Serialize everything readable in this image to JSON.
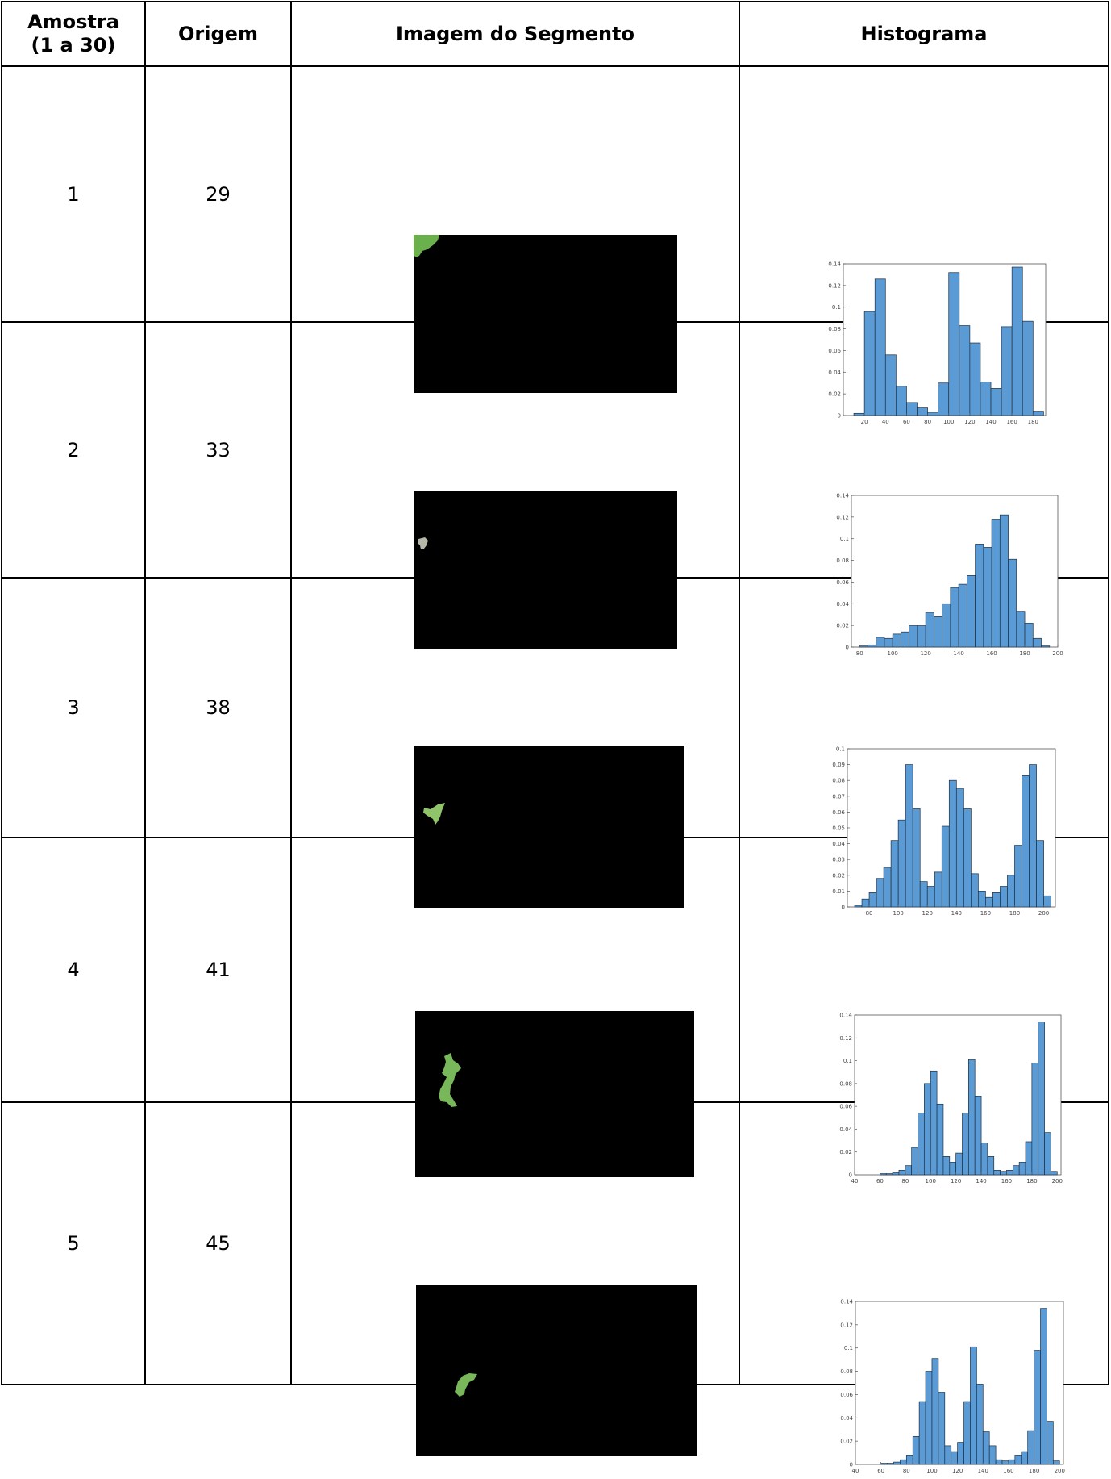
{
  "headers": [
    "Amostra\n(1 a 30)",
    "Origem",
    "Imagem do Segmento",
    "Histograma"
  ],
  "rows": [
    {
      "amostra": "1",
      "origem": "29",
      "chart_data": {
        "type": "bar",
        "x": [
          10,
          20,
          30,
          40,
          50,
          60,
          70,
          80,
          90,
          100,
          110,
          120,
          130,
          140,
          150,
          160,
          170,
          180
        ],
        "values": [
          0.002,
          0.096,
          0.126,
          0.056,
          0.027,
          0.012,
          0.007,
          0.003,
          0.03,
          0.132,
          0.083,
          0.067,
          0.031,
          0.025,
          0.082,
          0.137,
          0.087,
          0.004
        ],
        "xticks": [
          20,
          40,
          60,
          80,
          100,
          120,
          140,
          160,
          180
        ],
        "yticks": [
          0,
          0.02,
          0.04,
          0.06,
          0.08,
          0.1,
          0.12,
          0.14
        ],
        "xlim": [
          0,
          192
        ],
        "ylim": [
          0,
          0.14
        ]
      }
    },
    {
      "amostra": "2",
      "origem": "33",
      "chart_data": {
        "type": "bar",
        "x": [
          80,
          85,
          90,
          95,
          100,
          105,
          110,
          115,
          120,
          125,
          130,
          135,
          140,
          145,
          150,
          155,
          160,
          165,
          170,
          175,
          180,
          185,
          190
        ],
        "values": [
          0.001,
          0.002,
          0.009,
          0.008,
          0.012,
          0.014,
          0.02,
          0.02,
          0.032,
          0.028,
          0.04,
          0.055,
          0.058,
          0.066,
          0.095,
          0.092,
          0.118,
          0.122,
          0.081,
          0.033,
          0.022,
          0.008,
          0.001
        ],
        "xticks": [
          80,
          100,
          120,
          140,
          160,
          180,
          200
        ],
        "yticks": [
          0,
          0.02,
          0.04,
          0.06,
          0.08,
          0.1,
          0.12,
          0.14
        ],
        "xlim": [
          75,
          200
        ],
        "ylim": [
          0,
          0.14
        ]
      }
    },
    {
      "amostra": "3",
      "origem": "38",
      "chart_data": {
        "type": "bar",
        "x": [
          70,
          75,
          80,
          85,
          90,
          95,
          100,
          105,
          110,
          115,
          120,
          125,
          130,
          135,
          140,
          145,
          150,
          155,
          160,
          165,
          170,
          175,
          180,
          185,
          190,
          195,
          200
        ],
        "values": [
          0.001,
          0.005,
          0.009,
          0.018,
          0.025,
          0.042,
          0.055,
          0.09,
          0.062,
          0.016,
          0.013,
          0.022,
          0.051,
          0.08,
          0.075,
          0.062,
          0.021,
          0.01,
          0.006,
          0.009,
          0.013,
          0.02,
          0.039,
          0.083,
          0.09,
          0.042,
          0.007
        ],
        "xticks": [
          80,
          100,
          120,
          140,
          160,
          180,
          200
        ],
        "yticks": [
          0,
          0.01,
          0.02,
          0.03,
          0.04,
          0.05,
          0.06,
          0.07,
          0.08,
          0.09,
          0.1
        ],
        "xlim": [
          65,
          208
        ],
        "ylim": [
          0,
          0.1
        ]
      }
    },
    {
      "amostra": "4",
      "origem": "41",
      "chart_data": {
        "type": "bar",
        "x": [
          60,
          65,
          70,
          75,
          80,
          85,
          90,
          95,
          100,
          105,
          110,
          115,
          120,
          125,
          130,
          135,
          140,
          145,
          150,
          155,
          160,
          165,
          170,
          175,
          180,
          185,
          190,
          195
        ],
        "values": [
          0.001,
          0.001,
          0.002,
          0.004,
          0.008,
          0.024,
          0.054,
          0.08,
          0.091,
          0.062,
          0.016,
          0.011,
          0.019,
          0.054,
          0.101,
          0.069,
          0.028,
          0.016,
          0.004,
          0.003,
          0.004,
          0.008,
          0.011,
          0.029,
          0.098,
          0.134,
          0.037,
          0.003
        ],
        "xticks": [
          40,
          60,
          80,
          100,
          120,
          140,
          160,
          180,
          200
        ],
        "yticks": [
          0,
          0.02,
          0.04,
          0.06,
          0.08,
          0.1,
          0.12,
          0.14
        ],
        "xlim": [
          40,
          203
        ],
        "ylim": [
          0,
          0.14
        ]
      }
    },
    {
      "amostra": "5",
      "origem": "45",
      "chart_data": {
        "type": "bar",
        "x": [
          60,
          65,
          70,
          75,
          80,
          85,
          90,
          95,
          100,
          105,
          110,
          115,
          120,
          125,
          130,
          135,
          140,
          145,
          150,
          155,
          160,
          165,
          170,
          175,
          180,
          185,
          190,
          195
        ],
        "values": [
          0.001,
          0.001,
          0.002,
          0.004,
          0.008,
          0.024,
          0.054,
          0.08,
          0.091,
          0.062,
          0.016,
          0.011,
          0.019,
          0.054,
          0.101,
          0.069,
          0.028,
          0.016,
          0.004,
          0.003,
          0.004,
          0.008,
          0.011,
          0.029,
          0.098,
          0.134,
          0.037,
          0.003
        ],
        "xticks": [
          40,
          60,
          80,
          100,
          120,
          140,
          160,
          180,
          200
        ],
        "yticks": [
          0,
          0.02,
          0.04,
          0.06,
          0.08,
          0.1,
          0.12,
          0.14
        ],
        "xlim": [
          40,
          203
        ],
        "ylim": [
          0,
          0.14
        ]
      }
    }
  ],
  "colors": {
    "bar_fill": "#5b9bd5",
    "bar_edge": "#1f2f3f",
    "segment_bg": "#000000",
    "leaf_green": "#6ab04c",
    "leaf_gray": "#b8b8a8"
  }
}
